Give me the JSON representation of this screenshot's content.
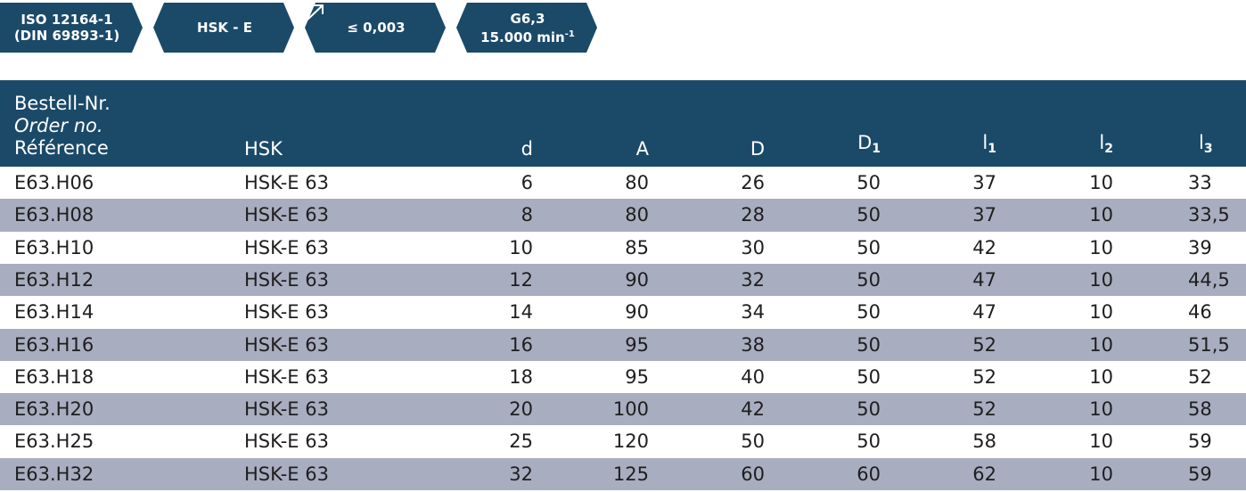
{
  "badges": [
    {
      "lines": [
        "ISO 12164-1",
        "(DIN 69893-1)"
      ]
    },
    {
      "lines": [
        "HSK - E"
      ]
    },
    {
      "lines": [
        "≤ 0,003"
      ]
    },
    {
      "lines": [
        "G6,3"
      ],
      "text": "15.000 min",
      "sup": "-1"
    }
  ],
  "table": {
    "header": [
      {
        "lines": [
          "Bestell-Nr.",
          "Order no.",
          "Référence"
        ]
      },
      {
        "text": "HSK"
      },
      {
        "text": "d"
      },
      {
        "text": "A"
      },
      {
        "text": "D"
      },
      {
        "text": "D",
        "sub": "1"
      },
      {
        "text": "l",
        "sub": "1"
      },
      {
        "text": "l",
        "sub": "2"
      },
      {
        "text": "l",
        "sub": "3"
      }
    ],
    "rows": [
      [
        "E63.H06",
        "HSK-E 63",
        "6",
        "80",
        "26",
        "50",
        "37",
        "10",
        "33"
      ],
      [
        "E63.H08",
        "HSK-E 63",
        "8",
        "80",
        "28",
        "50",
        "37",
        "10",
        "33,5"
      ],
      [
        "E63.H10",
        "HSK-E 63",
        "10",
        "85",
        "30",
        "50",
        "42",
        "10",
        "39"
      ],
      [
        "E63.H12",
        "HSK-E 63",
        "12",
        "90",
        "32",
        "50",
        "47",
        "10",
        "44,5"
      ],
      [
        "E63.H14",
        "HSK-E 63",
        "14",
        "90",
        "34",
        "50",
        "47",
        "10",
        "46"
      ],
      [
        "E63.H16",
        "HSK-E 63",
        "16",
        "95",
        "38",
        "50",
        "52",
        "10",
        "51,5"
      ],
      [
        "E63.H18",
        "HSK-E 63",
        "18",
        "95",
        "40",
        "50",
        "52",
        "10",
        "52"
      ],
      [
        "E63.H20",
        "HSK-E 63",
        "20",
        "100",
        "42",
        "50",
        "52",
        "10",
        "58"
      ],
      [
        "E63.H25",
        "HSK-E 63",
        "25",
        "120",
        "50",
        "50",
        "58",
        "10",
        "59"
      ],
      [
        "E63.H32",
        "HSK-E 63",
        "32",
        "125",
        "60",
        "60",
        "62",
        "10",
        "59"
      ]
    ]
  }
}
